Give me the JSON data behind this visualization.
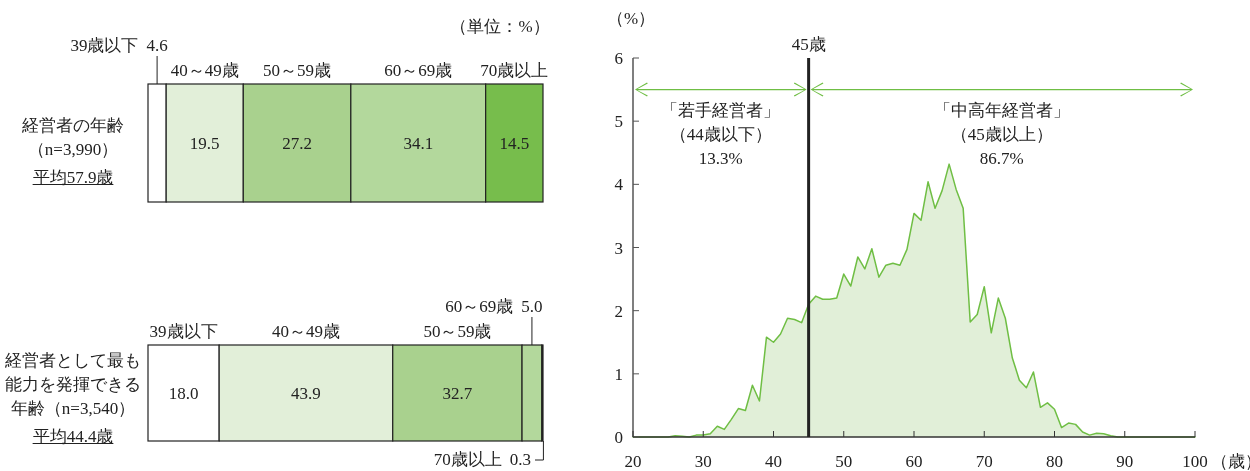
{
  "chart_data": [
    {
      "type": "bar",
      "orientation": "horizontal",
      "stacked": true,
      "legend": "top",
      "categories": [
        "経営者の年齢（n=3,990）",
        "経営者として最も能力を発揮できる年齢（n=3,540）"
      ],
      "series": [
        {
          "name": "39歳以下",
          "color": "#ffffff",
          "values": [
            4.6,
            18.0
          ],
          "value_labels": [
            "4.6",
            "18.0"
          ]
        },
        {
          "name": "40～49歳",
          "color": "#e2efd9",
          "values": [
            19.5,
            43.9
          ],
          "value_labels": [
            "19.5",
            "43.9"
          ]
        },
        {
          "name": "50～59歳",
          "color": "#a9d18e",
          "values": [
            27.2,
            32.7
          ],
          "value_labels": [
            "27.2",
            "32.7"
          ]
        },
        {
          "name": "60～69歳",
          "color": "#b3d89c",
          "values": [
            34.1,
            5.0
          ],
          "value_labels": [
            "34.1",
            "5.0"
          ]
        },
        {
          "name": "70歳以上",
          "color": "#77bd4c",
          "values": [
            14.5,
            0.3
          ],
          "value_labels": [
            "14.5",
            "0.3"
          ]
        }
      ],
      "annotations": [
        "（単位：%）",
        "平均57.9歳",
        "平均44.4歳"
      ]
    },
    {
      "type": "area",
      "xlabel": "（歳）",
      "ylabel": "（%）",
      "xlim": [
        20,
        100
      ],
      "ylim": [
        0,
        6
      ],
      "xticks": [
        20,
        30,
        40,
        50,
        60,
        70,
        80,
        90,
        100
      ],
      "yticks": [
        0,
        1,
        2,
        3,
        4,
        5,
        6
      ],
      "grid": false,
      "x": [
        20,
        21,
        22,
        23,
        24,
        25,
        26,
        27,
        28,
        29,
        30,
        31,
        32,
        33,
        34,
        35,
        36,
        37,
        38,
        39,
        40,
        41,
        42,
        43,
        44,
        45,
        46,
        47,
        48,
        49,
        50,
        51,
        52,
        53,
        54,
        55,
        56,
        57,
        58,
        59,
        60,
        61,
        62,
        63,
        64,
        65,
        66,
        67,
        68,
        69,
        70,
        71,
        72,
        73,
        74,
        75,
        76,
        77,
        78,
        79,
        80,
        81,
        82,
        83,
        84,
        85,
        86,
        87,
        88,
        89,
        90,
        91,
        92,
        93,
        94,
        95,
        96,
        97,
        98,
        99,
        100
      ],
      "series": [
        {
          "color": "#6fbe44",
          "values": [
            0,
            0,
            0,
            0,
            0,
            0,
            0.02,
            0.01,
            0,
            0.03,
            0.03,
            0.05,
            0.17,
            0.12,
            0.28,
            0.45,
            0.42,
            0.82,
            0.57,
            1.58,
            1.5,
            1.63,
            1.88,
            1.86,
            1.81,
            2.1,
            2.23,
            2.18,
            2.18,
            2.2,
            2.58,
            2.39,
            2.85,
            2.66,
            2.98,
            2.53,
            2.72,
            2.75,
            2.72,
            2.97,
            3.54,
            3.43,
            4.04,
            3.62,
            3.9,
            4.32,
            3.92,
            3.62,
            1.82,
            1.94,
            2.38,
            1.65,
            2.2,
            1.88,
            1.25,
            0.9,
            0.78,
            1.03,
            0.47,
            0.54,
            0.44,
            0.15,
            0.22,
            0.2,
            0.08,
            0.03,
            0.06,
            0.05,
            0.02,
            0,
            0,
            0,
            0,
            0,
            0,
            0,
            0,
            0,
            0,
            0,
            0
          ]
        }
      ],
      "ref_lines": [
        {
          "axis": "x",
          "value": 45,
          "label": "45歳",
          "color": "#222222"
        }
      ],
      "annotations": [
        "「若手経営者」",
        "（44歳以下）",
        "13.3%",
        "「中高年経営者」",
        "（45歳以上）",
        "86.7%"
      ]
    }
  ]
}
